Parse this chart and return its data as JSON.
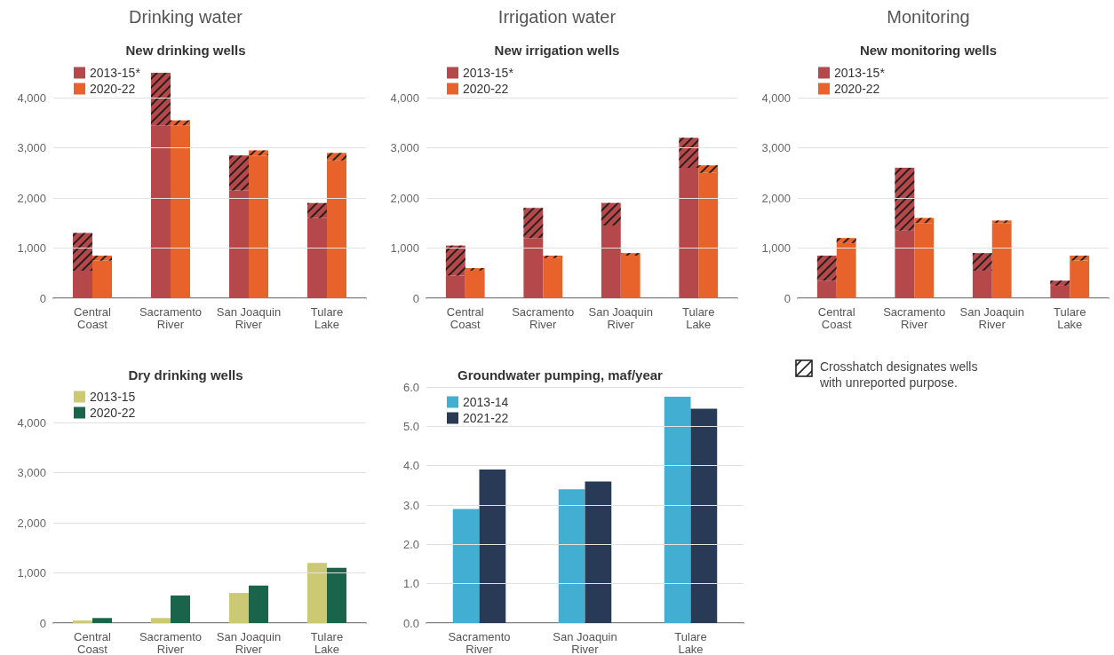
{
  "chart_data": [
    {
      "type": "bar",
      "annotations": [
        "Drinking water"
      ],
      "title": "New drinking wells",
      "categories": [
        null,
        "Central Coast",
        null,
        null,
        null,
        "Sacramento River",
        null,
        null,
        null,
        "San Joaquin River",
        null,
        null,
        null,
        "Tulare Lake",
        null,
        null
      ],
      "stacked": true,
      "legend": "top left",
      "grid": "y",
      "ylim": [
        0,
        4500
      ],
      "yticks": [
        {
          "value": 0,
          "label": "0"
        },
        {
          "value": 1000,
          "label": "1,000"
        },
        {
          "value": 2000,
          "label": "2,000"
        },
        {
          "value": 3000,
          "label": "3,000"
        },
        {
          "value": 4000,
          "label": "4,000"
        }
      ],
      "series": [
        {
          "name": "2013-15*",
          "color": "#b5484a",
          "values": [
            null,
            550,
            null,
            null,
            null,
            3450,
            null,
            null,
            null,
            2150,
            null,
            null,
            null,
            1600,
            null,
            null
          ]
        },
        {
          "color": "#b5484a",
          "values": [
            null,
            750,
            null,
            null,
            null,
            1050,
            null,
            null,
            null,
            700,
            null,
            null,
            null,
            300,
            null,
            null
          ]
        },
        {
          "name": "2020-22",
          "color": "#e8622c",
          "values": [
            null,
            null,
            750,
            null,
            null,
            null,
            3450,
            null,
            null,
            null,
            2850,
            null,
            null,
            null,
            2750,
            null
          ]
        },
        {
          "color": "#e8622c",
          "values": [
            null,
            null,
            100,
            null,
            null,
            null,
            100,
            null,
            null,
            null,
            100,
            null,
            null,
            null,
            150,
            null
          ]
        }
      ]
    },
    {
      "type": "bar",
      "annotations": [
        "Irrigation water"
      ],
      "title": "New irrigation wells",
      "categories": [
        null,
        "Central Coast",
        null,
        null,
        null,
        "Sacramento River",
        null,
        null,
        null,
        "San Joaquin River",
        null,
        null,
        null,
        "Tulare Lake",
        null,
        null
      ],
      "stacked": true,
      "legend": "top left",
      "grid": "y",
      "ylim": [
        0,
        4000
      ],
      "yticks": [
        {
          "value": 0,
          "label": "0"
        },
        {
          "value": 1000,
          "label": "1,000"
        },
        {
          "value": 2000,
          "label": "2,000"
        },
        {
          "value": 3000,
          "label": "3,000"
        },
        {
          "value": 4000,
          "label": "4,000"
        }
      ],
      "series": [
        {
          "name": "2013-15*",
          "color": "#b5484a",
          "values": [
            null,
            450,
            null,
            null,
            null,
            1200,
            null,
            null,
            null,
            1450,
            null,
            null,
            null,
            2600,
            null,
            null
          ]
        },
        {
          "color": "#b5484a",
          "values": [
            null,
            600,
            null,
            null,
            null,
            600,
            null,
            null,
            null,
            450,
            null,
            null,
            null,
            600,
            null,
            null
          ]
        },
        {
          "name": "2020-22",
          "color": "#e8622c",
          "values": [
            null,
            null,
            550,
            null,
            null,
            null,
            800,
            null,
            null,
            null,
            850,
            null,
            null,
            null,
            2500,
            null
          ]
        },
        {
          "color": "#e8622c",
          "values": [
            null,
            null,
            50,
            null,
            null,
            null,
            50,
            null,
            null,
            null,
            50,
            null,
            null,
            null,
            150,
            null
          ]
        }
      ]
    },
    {
      "type": "bar",
      "annotations": [
        "Monitoring"
      ],
      "title": "New monitoring wells",
      "categories": [
        null,
        "Central Coast",
        null,
        null,
        null,
        "Sacramento River",
        null,
        null,
        null,
        "San Joaquin River",
        null,
        null,
        null,
        "Tulare Lake",
        null,
        null
      ],
      "stacked": true,
      "legend": "top left",
      "grid": "y",
      "ylim": [
        0,
        4000
      ],
      "yticks": [
        {
          "value": 0,
          "label": "0"
        },
        {
          "value": 1000,
          "label": "1,000"
        },
        {
          "value": 2000,
          "label": "2,000"
        },
        {
          "value": 3000,
          "label": "3,000"
        },
        {
          "value": 4000,
          "label": "4,000"
        }
      ],
      "series": [
        {
          "name": "2013-15*",
          "color": "#b5484a",
          "values": [
            null,
            350,
            null,
            null,
            null,
            1350,
            null,
            null,
            null,
            550,
            null,
            null,
            null,
            250,
            null,
            null
          ]
        },
        {
          "color": "#b5484a",
          "values": [
            null,
            500,
            null,
            null,
            null,
            1250,
            null,
            null,
            null,
            350,
            null,
            null,
            null,
            100,
            null,
            null
          ]
        },
        {
          "name": "2020-22",
          "color": "#e8622c",
          "values": [
            null,
            null,
            1100,
            null,
            null,
            null,
            1500,
            null,
            null,
            null,
            1500,
            null,
            null,
            null,
            750,
            null
          ]
        },
        {
          "color": "#e8622c",
          "values": [
            null,
            null,
            100,
            null,
            null,
            null,
            100,
            null,
            null,
            null,
            50,
            null,
            null,
            null,
            100,
            null
          ]
        }
      ]
    },
    {
      "type": "bar",
      "title": "Dry drinking wells",
      "categories": [
        "Central Coast",
        "Sacramento River",
        "San Joaquin River",
        "Tulare Lake"
      ],
      "legend": "top left",
      "grid": "y",
      "ylim": [
        0,
        4000
      ],
      "yticks": [
        {
          "value": 0,
          "label": "0"
        },
        {
          "value": 1000,
          "label": "1,000"
        },
        {
          "value": 2000,
          "label": "2,000"
        },
        {
          "value": 3000,
          "label": "3,000"
        },
        {
          "value": 4000,
          "label": "4,000"
        }
      ],
      "series": [
        {
          "name": "2013-15",
          "color": "#cbc973",
          "values": [
            50,
            100,
            600,
            1200
          ]
        },
        {
          "name": "2020-22",
          "color": "#1a644b",
          "values": [
            100,
            550,
            750,
            1100
          ]
        }
      ]
    },
    {
      "type": "bar",
      "title": "Groundwater pumping, maf/year",
      "categories": [
        "Sacramento River",
        "San Joaquin River",
        "Tulare Lake"
      ],
      "legend": "top left",
      "grid": "y",
      "ylim": [
        0,
        6
      ],
      "yticks": [
        {
          "value": 0,
          "label": "0.0"
        },
        {
          "value": 1,
          "label": "1.0"
        },
        {
          "value": 2,
          "label": "2.0"
        },
        {
          "value": 3,
          "label": "3.0"
        },
        {
          "value": 4,
          "label": "4.0"
        },
        {
          "value": 5,
          "label": "5.0"
        },
        {
          "value": 6,
          "label": "6.0"
        }
      ],
      "series": [
        {
          "name": "2013-14",
          "color": "#42aed2",
          "values": [
            2.9,
            3.4,
            5.75
          ]
        },
        {
          "name": "2021-22",
          "color": "#283a55",
          "values": [
            3.9,
            3.6,
            5.45
          ]
        }
      ]
    },
    {
      "type": "other",
      "annotations": [
        "Crosshatch designates wells with unreported purpose."
      ]
    }
  ]
}
